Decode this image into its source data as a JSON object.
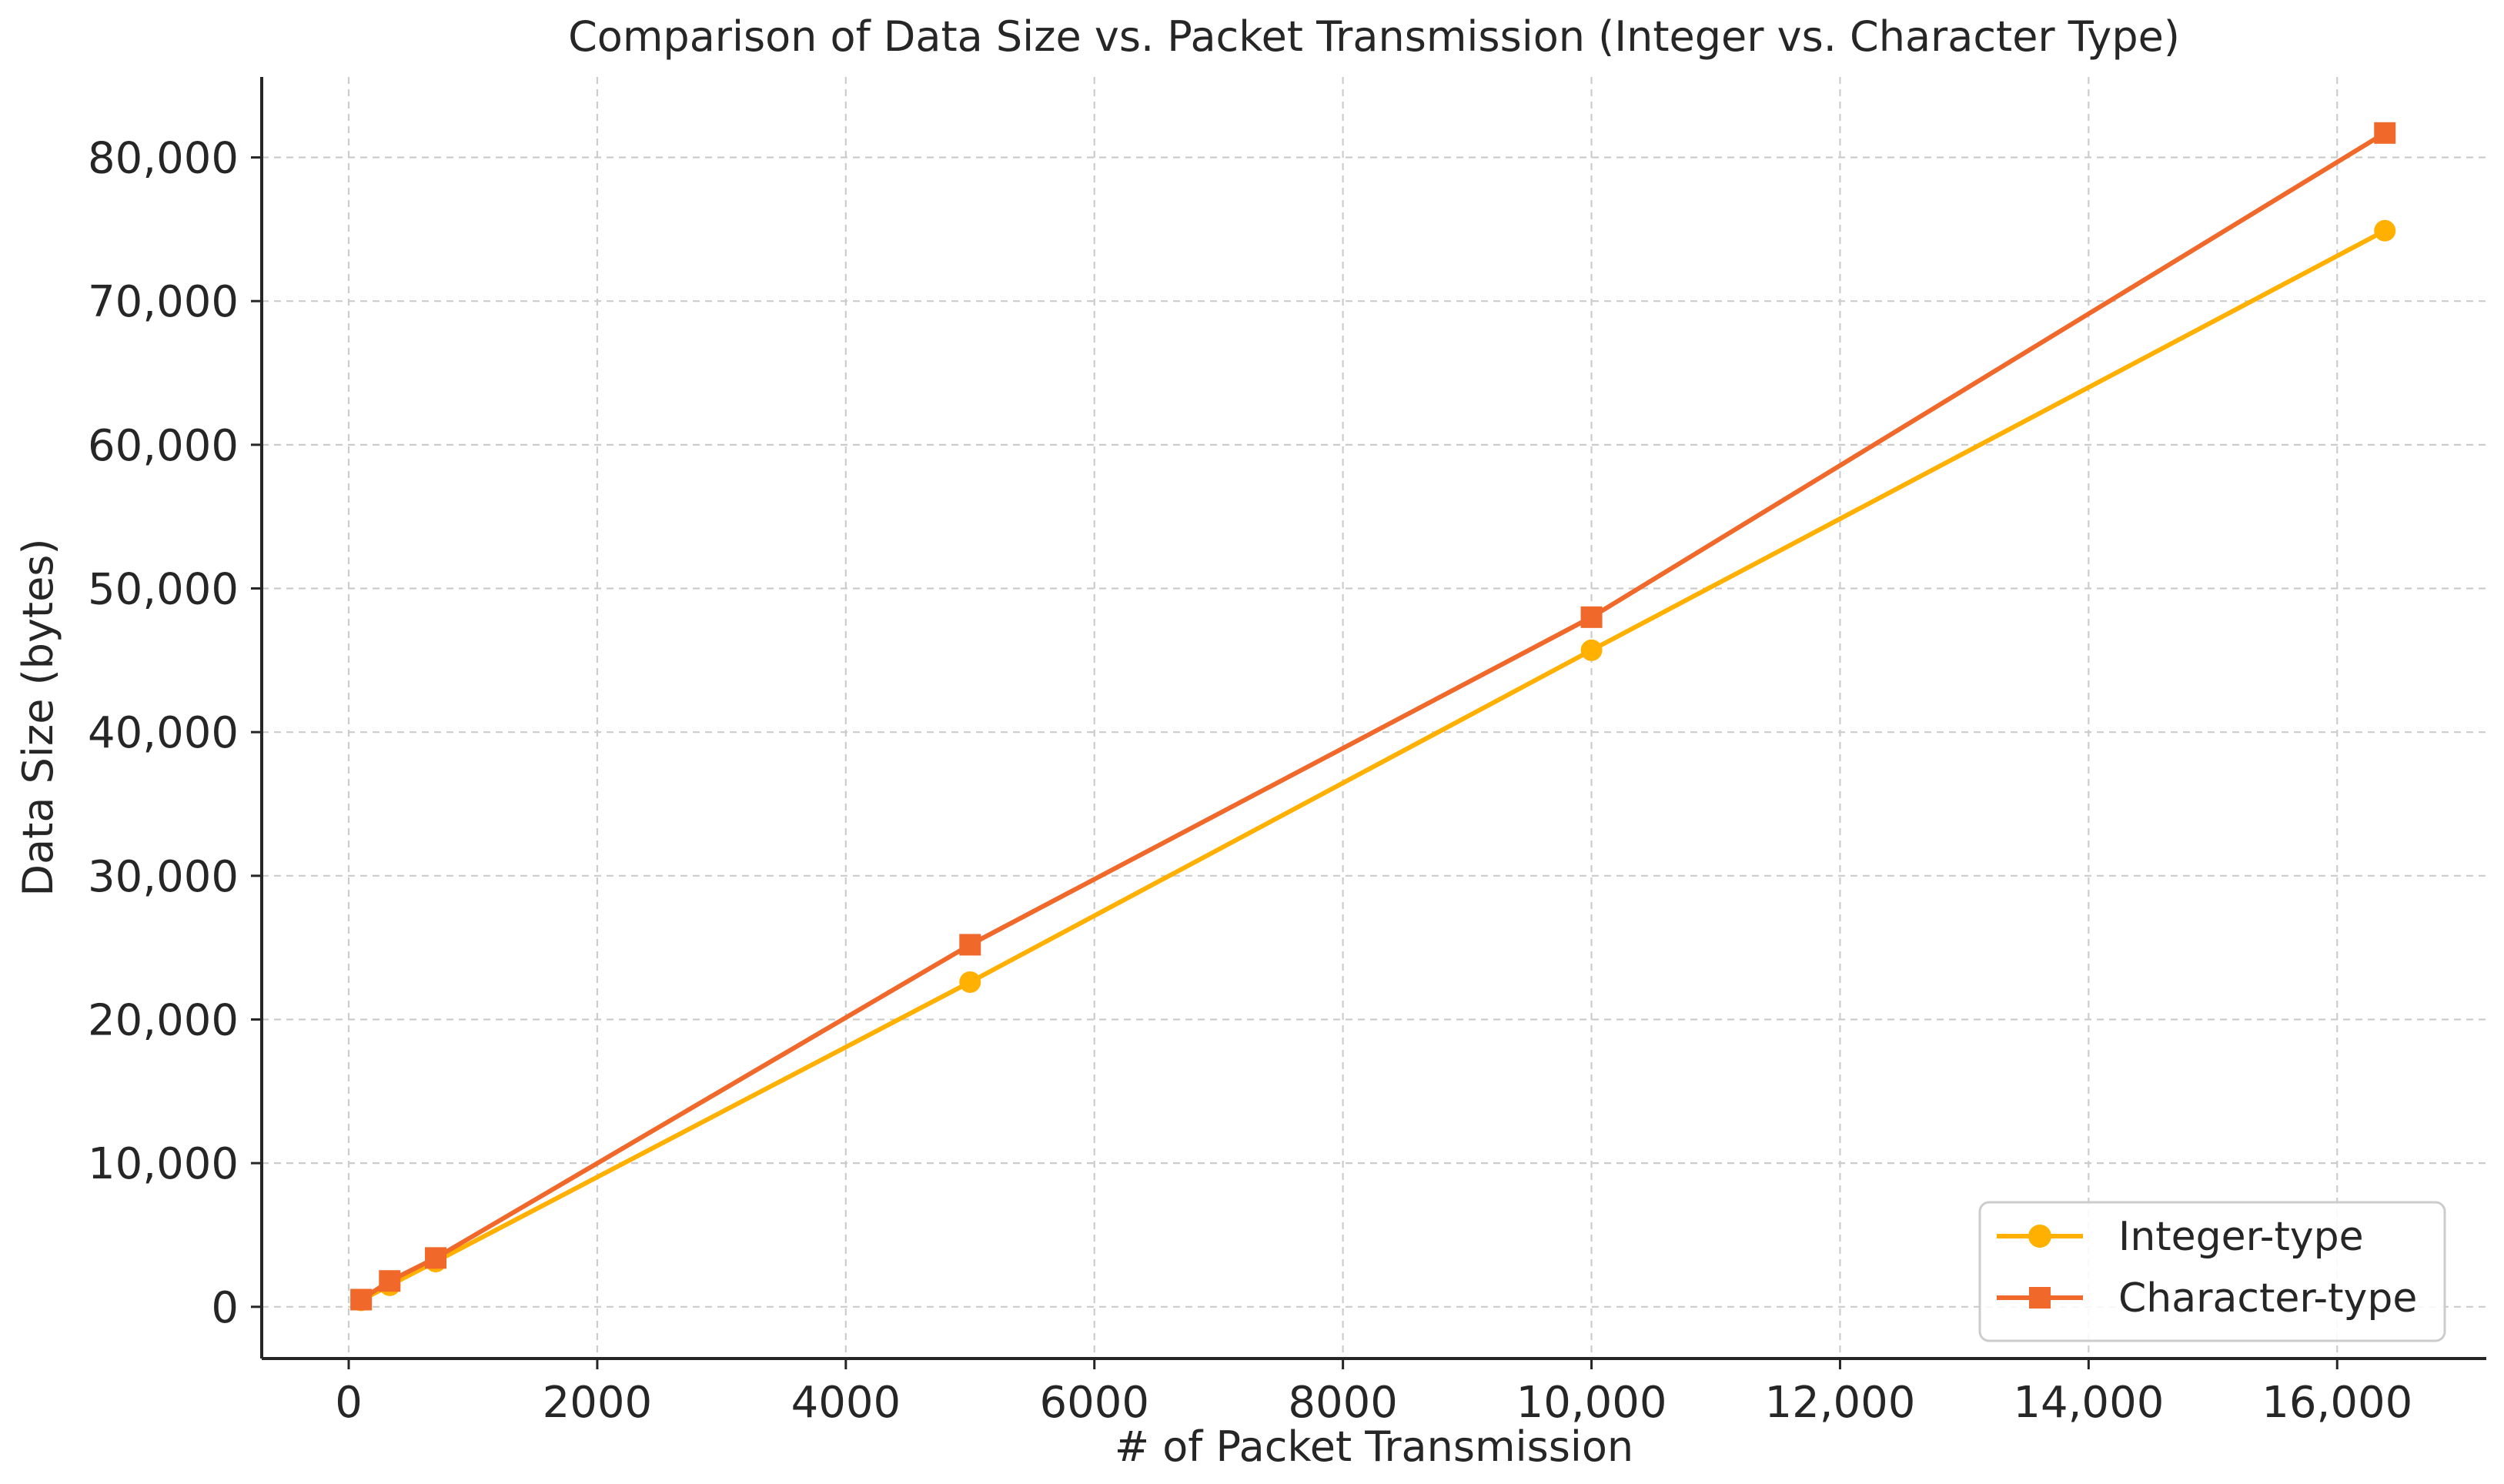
{
  "chart_data": {
    "type": "line",
    "title": "Comparison of Data Size vs. Packet Transmission (Integer vs. Character Type)",
    "xlabel": "# of Packet Transmission",
    "ylabel": "Data Size (bytes)",
    "xlim": [
      -700,
      17200
    ],
    "ylim": [
      -3600,
      85600
    ],
    "xticks": [
      0,
      2000,
      4000,
      6000,
      8000,
      10000,
      12000,
      14000,
      16000
    ],
    "xtick_labels": [
      "0",
      "2000",
      "4000",
      "6000",
      "8000",
      "10,000",
      "12,000",
      "14,000",
      "16,000"
    ],
    "yticks": [
      0,
      10000,
      20000,
      30000,
      40000,
      50000,
      60000,
      70000,
      80000
    ],
    "ytick_labels": [
      "0",
      "10,000",
      "20,000",
      "30,000",
      "40,000",
      "50,000",
      "60,000",
      "70,000",
      "80,000"
    ],
    "grid": true,
    "legend_position": "bottom-right",
    "series": [
      {
        "name": "Integer-type",
        "color": "#ffb000",
        "marker": "circle",
        "x": [
          100,
          330,
          700,
          5000,
          10000,
          16384
        ],
        "y": [
          450,
          1500,
          3150,
          22600,
          45700,
          74900
        ]
      },
      {
        "name": "Character-type",
        "color": "#f0682a",
        "marker": "square",
        "x": [
          100,
          330,
          700,
          5000,
          10000,
          16384
        ],
        "y": [
          500,
          1800,
          3400,
          25200,
          48000,
          81700
        ]
      }
    ]
  }
}
